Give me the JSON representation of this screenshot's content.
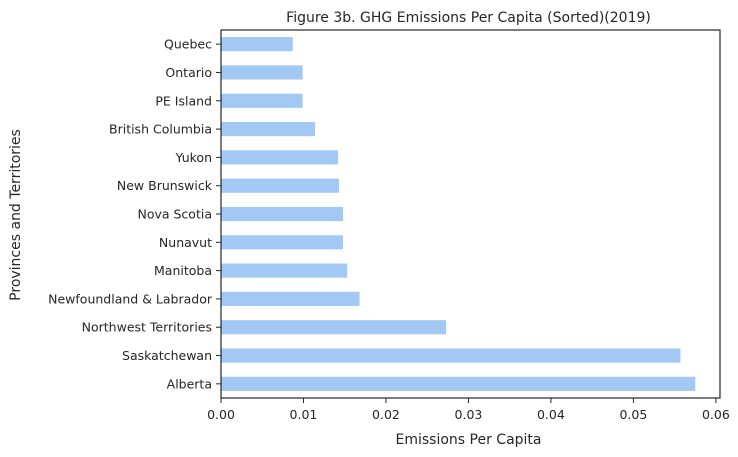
{
  "chart_data": {
    "type": "bar",
    "orientation": "horizontal",
    "title": "Figure 3b. GHG Emissions Per Capita (Sorted)(2019)",
    "xlabel": "Emissions Per Capita",
    "ylabel": "Provinces and Territories",
    "categories": [
      "Quebec",
      "Ontario",
      "PE Island",
      "British Columbia",
      "Yukon",
      "New Brunswick",
      "Nova Scotia",
      "Nunavut",
      "Manitoba",
      "Newfoundland & Labrador",
      "Northwest Territories",
      "Saskatchewan",
      "Alberta"
    ],
    "values": [
      0.0087,
      0.0099,
      0.0099,
      0.0114,
      0.0142,
      0.0143,
      0.0148,
      0.0148,
      0.0153,
      0.0168,
      0.0273,
      0.0557,
      0.0575
    ],
    "xlim": [
      0,
      0.0605
    ],
    "xticks": [
      0.0,
      0.01,
      0.02,
      0.03,
      0.04,
      0.05,
      0.06
    ],
    "xtick_labels": [
      "0.00",
      "0.01",
      "0.02",
      "0.03",
      "0.04",
      "0.05",
      "0.06"
    ],
    "grid": false,
    "legend": "none",
    "colors": {
      "bar": "#a1c9f4",
      "axis": "#262626"
    }
  }
}
